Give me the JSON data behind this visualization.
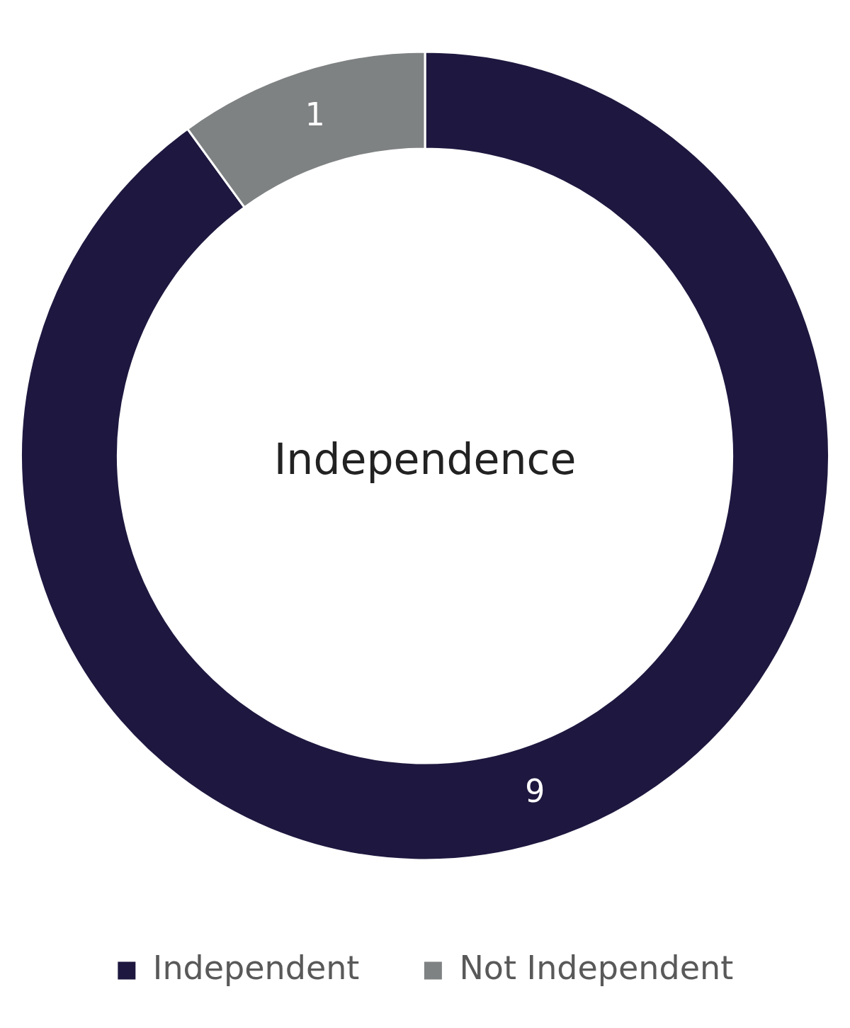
{
  "chart_data": {
    "type": "donut",
    "title": "Independence",
    "categories": [
      "Independent",
      "Not Independent"
    ],
    "values": [
      9,
      1
    ],
    "colors": [
      "#1e1840",
      "#7f8283"
    ],
    "data_labels": true,
    "legend": "bottom"
  }
}
